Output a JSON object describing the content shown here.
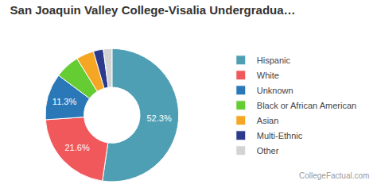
{
  "chart_data": {
    "type": "pie",
    "title": "San Joaquin Valley College-Visalia Undergradua…",
    "categories": [
      "Hispanic",
      "White",
      "Unknown",
      "Black or African American",
      "Asian",
      "Multi-Ethnic",
      "Other"
    ],
    "values": [
      52.3,
      21.6,
      11.3,
      6.0,
      4.3,
      2.4,
      2.1
    ],
    "value_labels": [
      "52.3%",
      "21.6%",
      "11.3%",
      null,
      null,
      null,
      null
    ],
    "colors": [
      "#4e9fb3",
      "#f0585c",
      "#2b78b8",
      "#66cc33",
      "#f5a623",
      "#2b3a8c",
      "#d3d3d3"
    ],
    "data_labels": true,
    "legend": "right",
    "annotations": [
      "CollegeFactual.com"
    ]
  }
}
